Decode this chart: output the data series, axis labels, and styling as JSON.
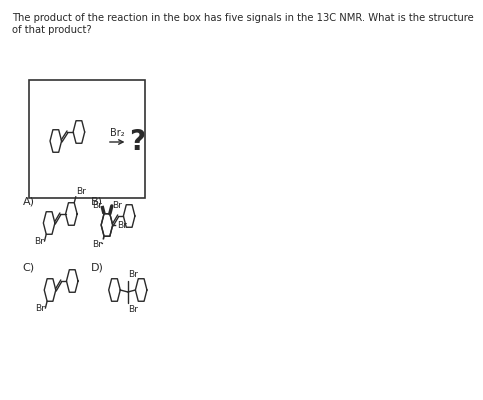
{
  "title_text": "The product of the reaction in the box has five signals in the 13C NMR. What is the structure\nof that product?",
  "title_fontsize": 7.2,
  "bg_color": "#ffffff",
  "line_color": "#2a2a2a",
  "label_A": "A)",
  "label_B": "B)",
  "label_C": "C)",
  "label_D": "D)",
  "br2_label": "Br₂",
  "question_mark": "?",
  "br_label": "Br"
}
